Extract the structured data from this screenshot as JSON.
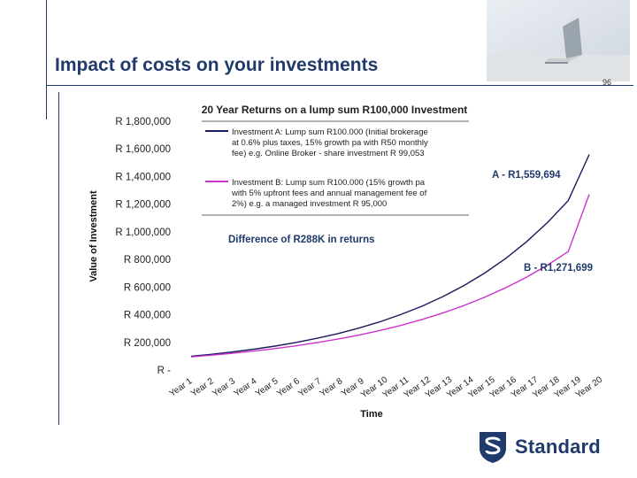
{
  "slide": {
    "title": "Impact of costs on your investments",
    "page_number": "96",
    "brand": "Standard"
  },
  "chart_data": {
    "type": "line",
    "title": "20 Year Returns on a lump sum R100,000 Investment",
    "xlabel": "Time",
    "ylabel": "Value of Investment",
    "ylim": [
      0,
      1800000
    ],
    "y_ticks": [
      "R -",
      "R 200,000",
      "R 400,000",
      "R 600,000",
      "R 800,000",
      "R 1,000,000",
      "R 1,200,000",
      "R 1,400,000",
      "R 1,600,000",
      "R 1,800,000"
    ],
    "categories": [
      "Year 1",
      "Year 2",
      "Year 3",
      "Year 4",
      "Year 5",
      "Year 6",
      "Year 7",
      "Year 8",
      "Year 9",
      "Year 10",
      "Year 11",
      "Year 12",
      "Year 13",
      "Year 14",
      "Year 15",
      "Year 16",
      "Year 17",
      "Year 18",
      "Year 19",
      "Year 20"
    ],
    "series": [
      {
        "name": "Investment A: Lump sum R100.000 (Initial brokerage at 0.6% plus taxes, 15% growth pa with R50 monthly fee) e.g. Online Broker - share investment  R 99,053",
        "legend_lines": [
          "Investment A: Lump sum R100.000 (Initial brokerage",
          "at 0.6% plus taxes, 15% growth pa with R50 monthly",
          "fee) e.g. Online Broker - share investment  R 99,053"
        ],
        "color": "#1a1a5e",
        "values": [
          99053,
          113912,
          131000,
          150650,
          173248,
          199235,
          229120,
          263488,
          303011,
          348463,
          400732,
          460842,
          529968,
          609463,
          700882,
          806014,
          926916,
          1065953,
          1225846,
          1559694
        ]
      },
      {
        "name": "Investment B: Lump sum R100.000 (15% growth pa with 5% upfront fees and annual management fee of 2%) e.g. a managed investment  R 95,000",
        "legend_lines": [
          "Investment B: Lump sum R100.000 (15% growth pa",
          "with 5% upfront fees and annual management fee of",
          "2%) e.g. a managed investment  R 95,000"
        ],
        "color": "#cc33cc",
        "values": [
          95000,
          107350,
          121306,
          137075,
          154895,
          175031,
          197785,
          223497,
          252552,
          285384,
          322484,
          364407,
          411780,
          465311,
          525802,
          594156,
          671396,
          758678,
          857306,
          1271699
        ]
      }
    ],
    "annotations": {
      "difference": "Difference of R288K in returns",
      "label_a": "A -  R1,559,694",
      "label_b": "B - R1,271,699"
    },
    "grid": false,
    "legend_position": "top-center"
  }
}
